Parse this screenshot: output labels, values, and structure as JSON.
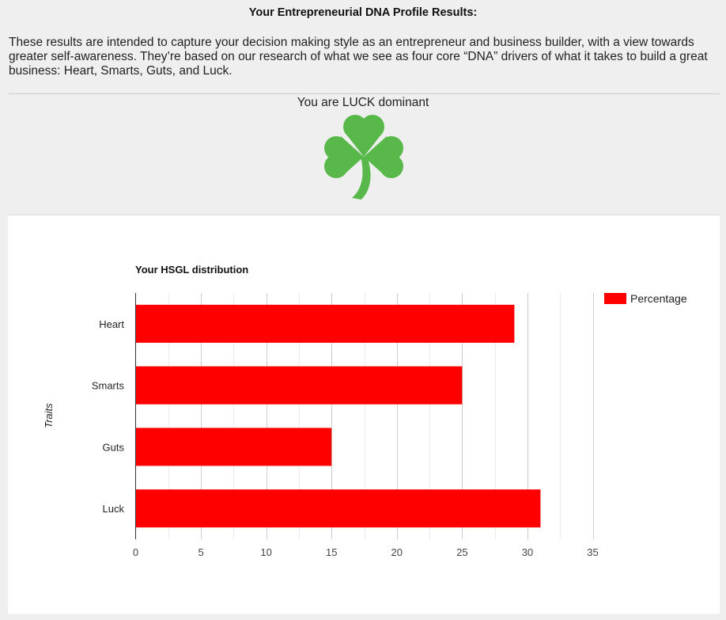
{
  "page": {
    "title": "Your Entrepreneurial DNA Profile Results:",
    "intro": "These results are intended to capture your decision making style as an entrepreneur and business builder, with a view towards greater self-awareness. They’re based on our research of what we see as four core “DNA” drivers of what it takes to build a great business: Heart, Smarts, Guts, and Luck.",
    "dominant_text": "You are LUCK dominant",
    "dominant_icon": "shamrock-icon",
    "icon_color": "#58b94a"
  },
  "chart_data": {
    "type": "bar",
    "orientation": "horizontal",
    "title": "Your HSGL distribution",
    "ylabel": "Traits",
    "xlabel": "",
    "categories": [
      "Heart",
      "Smarts",
      "Guts",
      "Luck"
    ],
    "series": [
      {
        "name": "Percentage",
        "values": [
          29,
          25,
          15,
          31
        ],
        "color": "#ff0000"
      }
    ],
    "xlim": [
      0,
      35
    ],
    "x_ticks": [
      0,
      5,
      10,
      15,
      20,
      25,
      30,
      35
    ],
    "grid": true,
    "legend": "top-right"
  }
}
